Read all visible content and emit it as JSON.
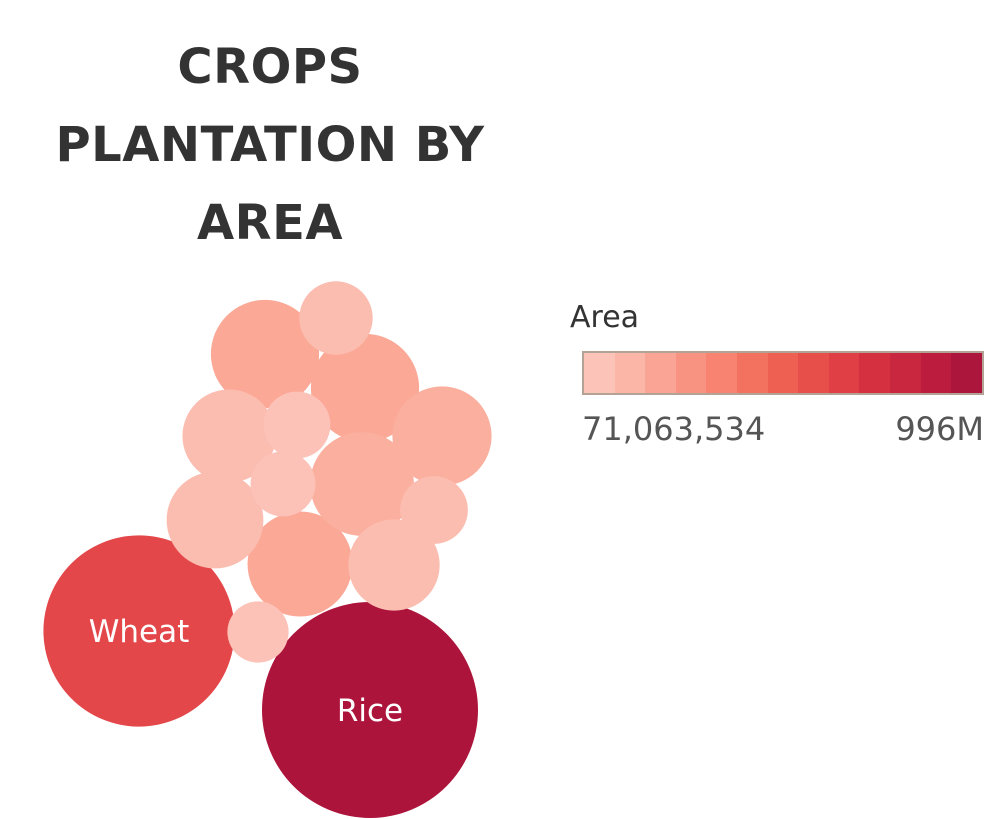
{
  "chart_data": {
    "type": "packed_bubble",
    "title_lines": [
      "CROPS",
      "PLANTATION BY",
      "AREA"
    ],
    "color_legend": {
      "title": "Area",
      "min_label": "71,063,534",
      "max_label": "996M",
      "min": 71063534,
      "max": 996000000,
      "colors": [
        "#fcc4b9",
        "#fbb6a8",
        "#f9a494",
        "#f89382",
        "#f78370",
        "#f3725f",
        "#ee6152",
        "#e74f4b",
        "#e03f45",
        "#d5303f",
        "#c92640",
        "#bc1c3d",
        "#ad163c"
      ]
    },
    "bubbles": [
      {
        "label": "Rice",
        "value": 996000000,
        "color": "#ad143b"
      },
      {
        "label": "Wheat",
        "value": 780000000,
        "color": "#e4474a"
      },
      {
        "label": "",
        "value": 250000000,
        "color": "#fba896"
      },
      {
        "label": "",
        "value": 250000000,
        "color": "#fba896"
      },
      {
        "label": "",
        "value": 235000000,
        "color": "#fba896"
      },
      {
        "label": "",
        "value": 230000000,
        "color": "#fbaf9e"
      },
      {
        "label": "",
        "value": 210000000,
        "color": "#fbaf9e"
      },
      {
        "label": "",
        "value": 200000000,
        "color": "#fcbdb1"
      },
      {
        "label": "",
        "value": 185000000,
        "color": "#fcbdb1"
      },
      {
        "label": "",
        "value": 178000000,
        "color": "#fcbdb1"
      },
      {
        "label": "",
        "value": 115000000,
        "color": "#fcbdb1"
      },
      {
        "label": "",
        "value": 98000000,
        "color": "#fcbdb1"
      },
      {
        "label": "",
        "value": 95000000,
        "color": "#fcc2b8"
      },
      {
        "label": "",
        "value": 90000000,
        "color": "#fcc2b8"
      },
      {
        "label": "",
        "value": 80000000,
        "color": "#fcc2b8"
      }
    ]
  }
}
